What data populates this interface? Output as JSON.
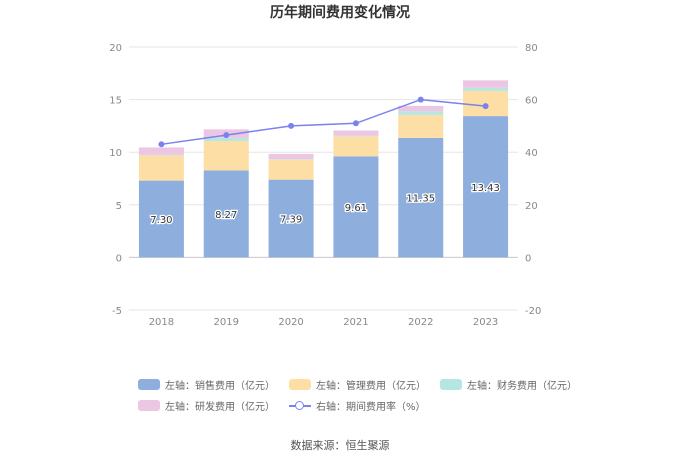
{
  "title": "历年期间费用变化情况",
  "source": "数据来源：恒生聚源",
  "chart_data": {
    "type": "bar",
    "stacked": true,
    "categories": [
      "2018",
      "2019",
      "2020",
      "2021",
      "2022",
      "2023"
    ],
    "left_axis": {
      "ylim": [
        -5,
        20
      ],
      "ticks": [
        -5,
        0,
        5,
        10,
        15,
        20
      ]
    },
    "right_axis": {
      "ylim": [
        -20,
        80
      ],
      "ticks": [
        -20,
        0,
        20,
        40,
        60,
        80
      ]
    },
    "series": [
      {
        "name": "左轴：销售费用（亿元）",
        "axis": "left",
        "type": "bar",
        "color": "#8eaedd",
        "values": [
          7.3,
          8.27,
          7.39,
          9.61,
          11.35,
          13.43
        ],
        "labels": [
          "7.30",
          "8.27",
          "7.39",
          "9.61",
          "11.35",
          "13.43"
        ]
      },
      {
        "name": "左轴：管理费用（亿元）",
        "axis": "left",
        "type": "bar",
        "color": "#fddea5",
        "values": [
          2.4,
          2.8,
          1.9,
          1.9,
          2.2,
          2.4
        ]
      },
      {
        "name": "左轴：财务费用（亿元）",
        "axis": "left",
        "type": "bar",
        "color": "#b5e6e4",
        "values": [
          0.05,
          0.3,
          0.05,
          0.05,
          0.35,
          0.3
        ]
      },
      {
        "name": "左轴：研发费用（亿元）",
        "axis": "left",
        "type": "bar",
        "color": "#ecc6e2",
        "values": [
          0.7,
          0.8,
          0.5,
          0.5,
          0.5,
          0.7
        ]
      },
      {
        "name": "右轴：期间费用率（%）",
        "axis": "right",
        "type": "line",
        "color": "#7b82ee",
        "values": [
          43,
          46.5,
          50,
          51,
          60,
          57.5
        ]
      }
    ],
    "legend_position": "bottom",
    "grid": true
  }
}
